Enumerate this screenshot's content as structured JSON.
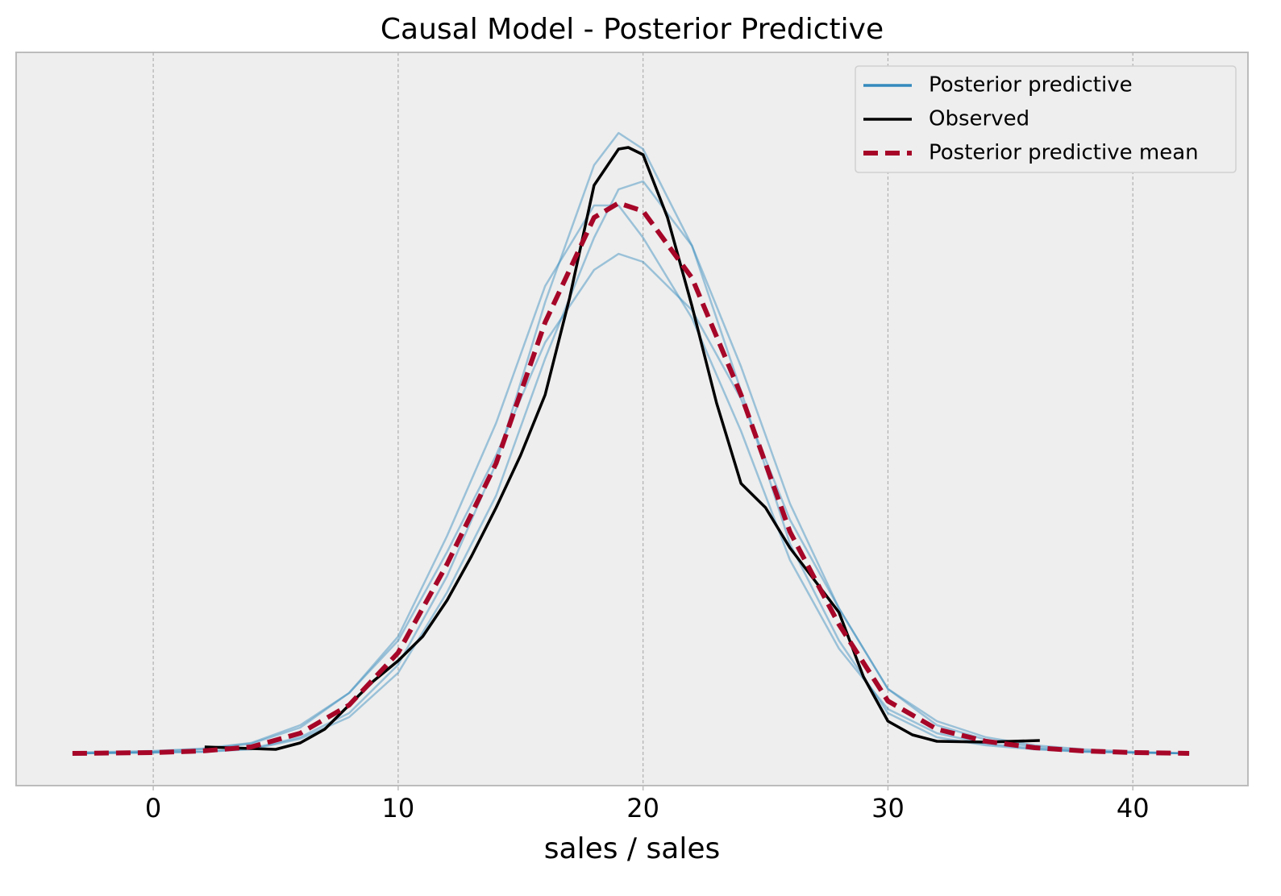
{
  "chart_data": {
    "type": "line",
    "title": "Causal Model - Posterior Predictive",
    "x_label": "sales / sales",
    "xlim": [
      -5.6,
      44.7
    ],
    "ylim": [
      -0.004,
      0.087
    ],
    "xticks": [
      0,
      10,
      20,
      30,
      40
    ],
    "grid": "x",
    "legend": "upper right",
    "series": [
      {
        "name": "Posterior predictive",
        "color": "#348abd",
        "linestyle": "solid",
        "x": [
          -3.3,
          0,
          2,
          4,
          6,
          8,
          10,
          12,
          14,
          16,
          18,
          19,
          20,
          22,
          24,
          26,
          28,
          30,
          32,
          34,
          36,
          38,
          40,
          42.3
        ],
        "values": [
          [
            0,
            0.0001,
            0.0002,
            0.0006,
            0.002,
            0.005,
            0.011,
            0.022,
            0.036,
            0.056,
            0.073,
            0.077,
            0.075,
            0.063,
            0.045,
            0.026,
            0.014,
            0.005,
            0.002,
            0.001,
            0.0005,
            0.0002,
            0.0001,
            0
          ],
          [
            0.0001,
            0.0003,
            0.0006,
            0.0013,
            0.0035,
            0.0075,
            0.014,
            0.025,
            0.037,
            0.051,
            0.06,
            0.062,
            0.061,
            0.055,
            0.044,
            0.029,
            0.018,
            0.008,
            0.004,
            0.002,
            0.001,
            0.0005,
            0.0002,
            0
          ],
          [
            0,
            0.0001,
            0.0002,
            0.0005,
            0.0018,
            0.0045,
            0.01,
            0.02,
            0.032,
            0.049,
            0.064,
            0.07,
            0.071,
            0.063,
            0.048,
            0.031,
            0.018,
            0.008,
            0.0035,
            0.0017,
            0.0008,
            0.0003,
            0.0001,
            0
          ],
          [
            0,
            0.0002,
            0.0005,
            0.0012,
            0.0032,
            0.0075,
            0.0145,
            0.027,
            0.041,
            0.058,
            0.068,
            0.068,
            0.064,
            0.054,
            0.04,
            0.024,
            0.013,
            0.0055,
            0.0025,
            0.0012,
            0.0006,
            0.0002,
            0.0001,
            0
          ]
        ]
      },
      {
        "name": "Observed",
        "color": "#000000",
        "linestyle": "solid",
        "x": [
          2.1,
          4,
          5,
          6,
          7,
          8,
          9,
          10,
          11,
          12,
          13,
          14,
          15,
          16,
          17,
          18,
          19,
          19.4,
          20,
          21,
          22,
          23,
          24,
          25,
          26,
          27,
          28,
          29,
          30,
          31,
          32,
          34,
          36.2
        ],
        "values": [
          0.0008,
          0.0006,
          0.0005,
          0.0013,
          0.003,
          0.006,
          0.009,
          0.0115,
          0.0145,
          0.019,
          0.0245,
          0.0305,
          0.037,
          0.0445,
          0.0565,
          0.0705,
          0.075,
          0.0752,
          0.0743,
          0.0665,
          0.0555,
          0.0435,
          0.0335,
          0.0305,
          0.0255,
          0.0215,
          0.0175,
          0.0095,
          0.004,
          0.0023,
          0.0015,
          0.0014,
          0.0016
        ]
      },
      {
        "name": "Posterior predictive mean",
        "color": "#a60628",
        "linestyle": "dashed",
        "x": [
          -3.3,
          0,
          2,
          4,
          6,
          8,
          10,
          12,
          14,
          16,
          18,
          19,
          20,
          22,
          24,
          26,
          28,
          30,
          32,
          34,
          36,
          38,
          40,
          42.3
        ],
        "values": [
          0,
          0.0001,
          0.0003,
          0.0008,
          0.0025,
          0.006,
          0.0125,
          0.0235,
          0.036,
          0.0535,
          0.0665,
          0.0683,
          0.0673,
          0.059,
          0.0445,
          0.0275,
          0.016,
          0.0065,
          0.003,
          0.0015,
          0.0007,
          0.0003,
          0.0001,
          0
        ]
      }
    ]
  }
}
